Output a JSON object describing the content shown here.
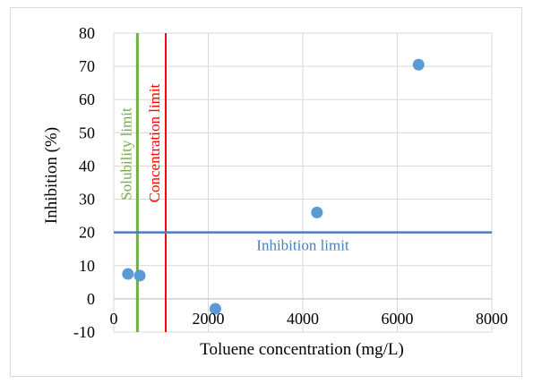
{
  "chart_data": {
    "type": "scatter",
    "xlabel": "Toluene concentration (mg/L)",
    "ylabel": "Inhibition (%)",
    "xlim": [
      0,
      8000
    ],
    "ylim": [
      -10,
      80
    ],
    "x_ticks": [
      0,
      2000,
      4000,
      6000,
      8000
    ],
    "y_ticks": [
      -10,
      0,
      10,
      20,
      30,
      40,
      50,
      60,
      70,
      80
    ],
    "grid": true,
    "series": [
      {
        "color": "#5b9bd5",
        "points": [
          {
            "x": 300,
            "y": 7.5
          },
          {
            "x": 550,
            "y": 7
          },
          {
            "x": 2150,
            "y": -3
          },
          {
            "x": 4300,
            "y": 26
          },
          {
            "x": 6450,
            "y": 70.5
          }
        ]
      }
    ],
    "reference_lines": [
      {
        "orientation": "vertical",
        "x": 500,
        "label": "Solubility  limit",
        "color": "#70ad47"
      },
      {
        "orientation": "vertical",
        "x": 1100,
        "label": "Concentration limit",
        "color": "#ff0000"
      },
      {
        "orientation": "horizontal",
        "y": 20,
        "label": "Inhibition  limit",
        "color": "#4a7ebb"
      }
    ]
  }
}
